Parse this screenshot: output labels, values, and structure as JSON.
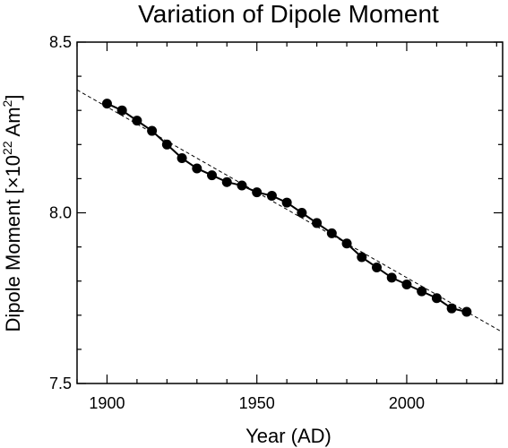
{
  "chart_data": {
    "type": "scatter",
    "title": "Variation of Dipole Moment",
    "xlabel": "Year (AD)",
    "ylabel": {
      "prefix": "Dipole Moment [×10",
      "exp1": "22",
      "middle": " Am",
      "exp2": "2",
      "suffix": "]"
    },
    "xlim": [
      1890,
      2032
    ],
    "ylim": [
      7.5,
      8.5
    ],
    "x_ticks": [
      {
        "value": 1900,
        "label": "1900"
      },
      {
        "value": 1950,
        "label": "1950"
      },
      {
        "value": 2000,
        "label": "2000"
      }
    ],
    "x_minor_step": 10,
    "y_ticks": [
      {
        "value": 7.5,
        "label": "7.5"
      },
      {
        "value": 8.0,
        "label": "8.0"
      },
      {
        "value": 8.5,
        "label": "8.5"
      }
    ],
    "y_minor_step": 0.1,
    "grid": false,
    "series": [
      {
        "style": "line-with-markers",
        "color": "#000000",
        "points": [
          {
            "x": 1900,
            "y": 8.32
          },
          {
            "x": 1905,
            "y": 8.3
          },
          {
            "x": 1910,
            "y": 8.27
          },
          {
            "x": 1915,
            "y": 8.24
          },
          {
            "x": 1920,
            "y": 8.2
          },
          {
            "x": 1925,
            "y": 8.16
          },
          {
            "x": 1930,
            "y": 8.13
          },
          {
            "x": 1935,
            "y": 8.11
          },
          {
            "x": 1940,
            "y": 8.09
          },
          {
            "x": 1945,
            "y": 8.08
          },
          {
            "x": 1950,
            "y": 8.06
          },
          {
            "x": 1955,
            "y": 8.05
          },
          {
            "x": 1960,
            "y": 8.03
          },
          {
            "x": 1965,
            "y": 8.0
          },
          {
            "x": 1970,
            "y": 7.97
          },
          {
            "x": 1975,
            "y": 7.94
          },
          {
            "x": 1980,
            "y": 7.91
          },
          {
            "x": 1985,
            "y": 7.87
          },
          {
            "x": 1990,
            "y": 7.84
          },
          {
            "x": 1995,
            "y": 7.81
          },
          {
            "x": 2000,
            "y": 7.79
          },
          {
            "x": 2005,
            "y": 7.77
          },
          {
            "x": 2010,
            "y": 7.75
          },
          {
            "x": 2015,
            "y": 7.72
          },
          {
            "x": 2020,
            "y": 7.71
          }
        ]
      },
      {
        "style": "dashed-trend-line",
        "color": "#000000",
        "points": [
          {
            "x": 1890,
            "y": 8.36
          },
          {
            "x": 2032,
            "y": 7.65
          }
        ]
      }
    ]
  }
}
